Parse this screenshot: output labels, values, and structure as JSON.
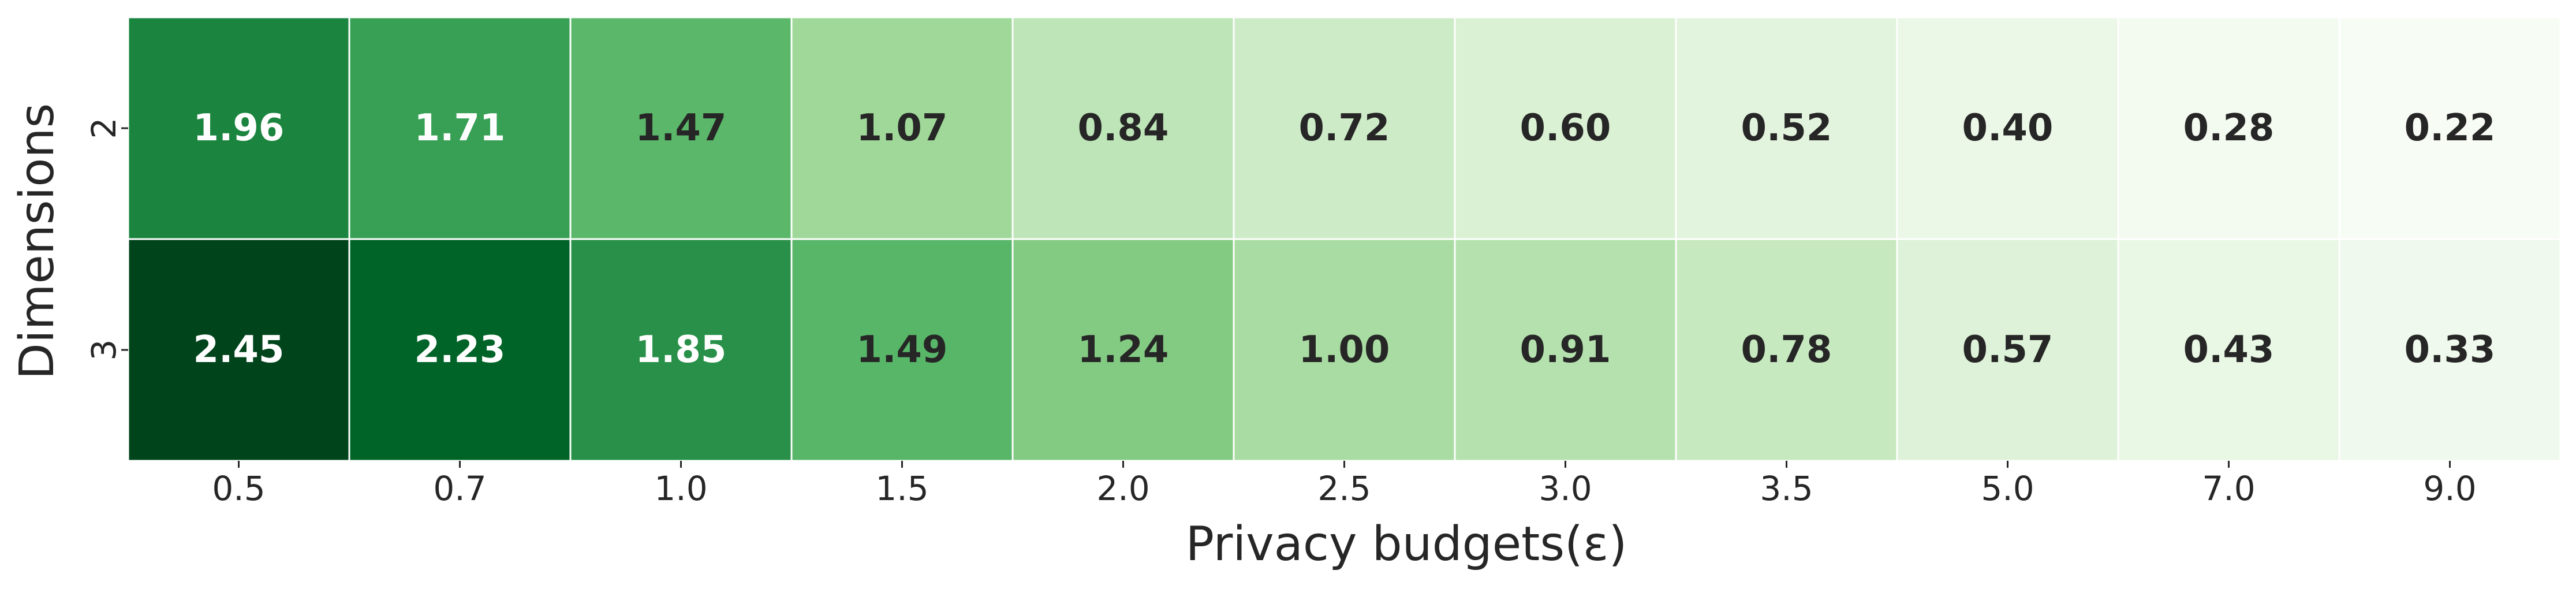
{
  "chart_data": {
    "type": "heatmap",
    "title": "",
    "xlabel": "Privacy budgets(ε)",
    "ylabel": "Dimensions",
    "x_categories": [
      "0.5",
      "0.7",
      "1.0",
      "1.5",
      "2.0",
      "2.5",
      "3.0",
      "3.5",
      "5.0",
      "7.0",
      "9.0"
    ],
    "y_categories": [
      "2",
      "3"
    ],
    "values": [
      [
        1.96,
        1.71,
        1.47,
        1.07,
        0.84,
        0.72,
        0.6,
        0.52,
        0.4,
        0.28,
        0.22
      ],
      [
        2.45,
        2.23,
        1.85,
        1.49,
        1.24,
        1.0,
        0.91,
        0.78,
        0.57,
        0.43,
        0.33
      ]
    ],
    "value_labels": [
      [
        "1.96",
        "1.71",
        "1.47",
        "1.07",
        "0.84",
        "0.72",
        "0.60",
        "0.52",
        "0.40",
        "0.28",
        "0.22"
      ],
      [
        "2.45",
        "2.23",
        "1.85",
        "1.49",
        "1.24",
        "1.00",
        "0.91",
        "0.78",
        "0.57",
        "0.43",
        "0.33"
      ]
    ],
    "colormap": "Greens",
    "color_range": [
      0.22,
      2.45
    ],
    "colors": {
      "low": "#f7fcf5",
      "high": "#00441b",
      "cell_border": "#ffffff",
      "dark_text": "#262626",
      "light_text": "#ffffff"
    },
    "colorbar": false,
    "grid": false
  }
}
